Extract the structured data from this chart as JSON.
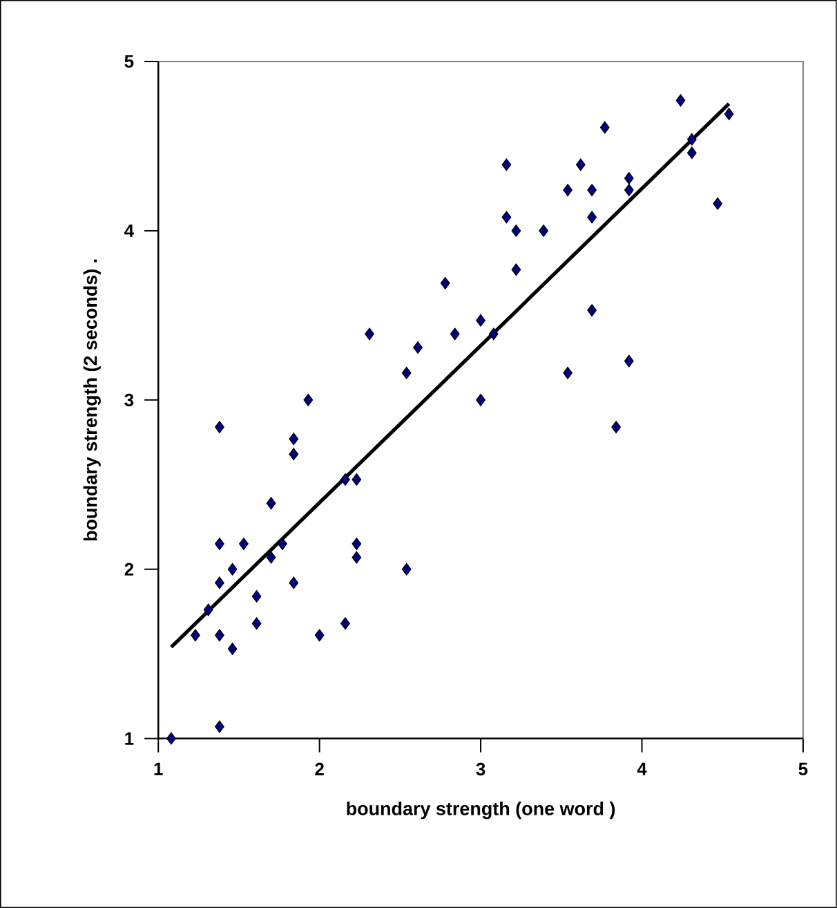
{
  "chart_data": {
    "type": "scatter",
    "xlabel": "boundary strength  (one word )",
    "ylabel": "boundary strength  (2 seconds)  .",
    "xlim": [
      1,
      5
    ],
    "ylim": [
      1,
      5
    ],
    "xticks": [
      1,
      2,
      3,
      4,
      5
    ],
    "yticks": [
      1,
      2,
      3,
      4,
      5
    ],
    "grid": false,
    "marker": "diamond",
    "series": [
      {
        "color": "#000080",
        "x": [
          2.78,
          2.31,
          2.84,
          3.0,
          3.08,
          2.61,
          2.54,
          1.93,
          3.0,
          4.24,
          4.54,
          3.77,
          4.31,
          4.31,
          3.16,
          3.62,
          3.92,
          3.54,
          3.69,
          3.92,
          4.47,
          3.16,
          3.69,
          3.22,
          3.39,
          3.22,
          3.69,
          3.92,
          3.54,
          3.84,
          1.38,
          1.84,
          1.84,
          2.16,
          2.23,
          1.7,
          1.38,
          1.53,
          1.77,
          2.23,
          1.7,
          2.23,
          2.54,
          1.46,
          1.38,
          1.84,
          1.61,
          1.31,
          1.61,
          2.16,
          1.23,
          1.38,
          2.0,
          1.46,
          1.38,
          1.08
        ],
        "values": [
          3.69,
          3.39,
          3.39,
          3.47,
          3.39,
          3.31,
          3.16,
          3.0,
          3.0,
          4.77,
          4.69,
          4.61,
          4.54,
          4.46,
          4.39,
          4.39,
          4.31,
          4.24,
          4.24,
          4.24,
          4.16,
          4.08,
          4.08,
          4.0,
          4.0,
          3.77,
          3.53,
          3.23,
          3.16,
          2.84,
          2.84,
          2.77,
          2.68,
          2.53,
          2.53,
          2.39,
          2.15,
          2.15,
          2.15,
          2.15,
          2.07,
          2.07,
          2.0,
          2.0,
          1.92,
          1.92,
          1.84,
          1.76,
          1.68,
          1.68,
          1.61,
          1.61,
          1.61,
          1.53,
          1.07,
          1.0
        ]
      },
      {
        "type": "line",
        "color": "#000000",
        "marker": "none",
        "line_style": "solid",
        "x": [
          1.08,
          4.54
        ],
        "values": [
          1.54,
          4.75
        ]
      }
    ]
  }
}
